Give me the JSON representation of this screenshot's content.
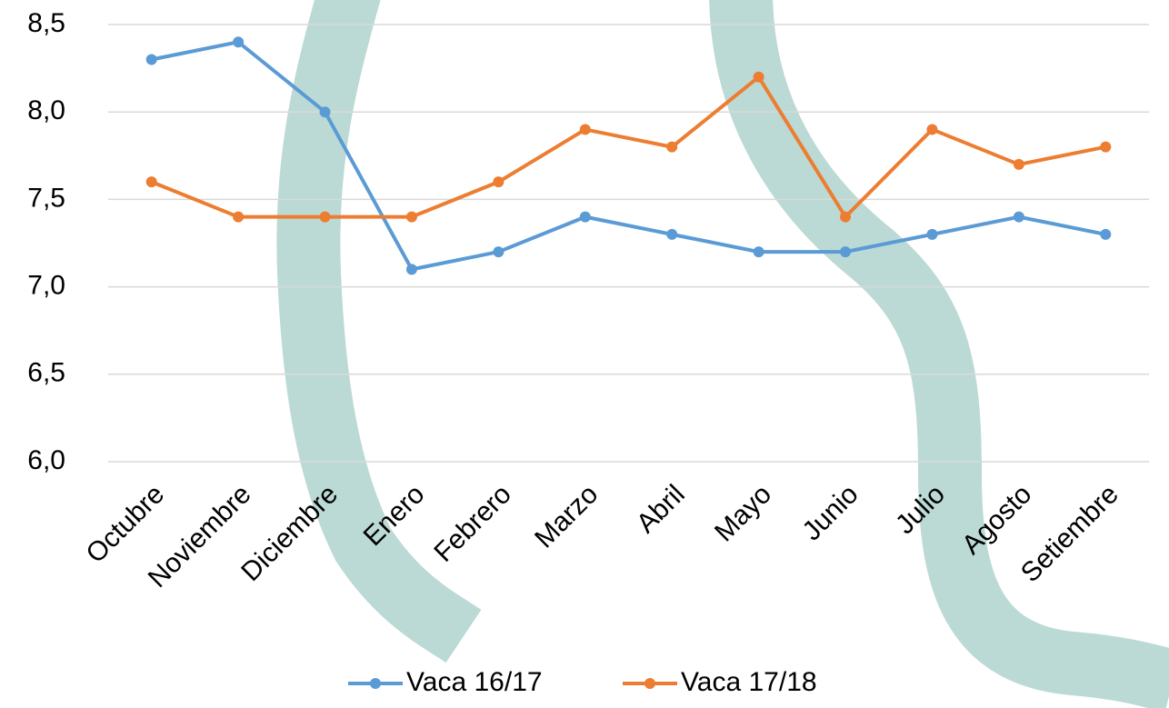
{
  "chart_data": {
    "type": "line",
    "categories": [
      "Octubre",
      "Noviembre",
      "Diciembre",
      "Enero",
      "Febrero",
      "Marzo",
      "Abril",
      "Mayo",
      "Junio",
      "Julio",
      "Agosto",
      "Setiembre"
    ],
    "series": [
      {
        "name": "Vaca 16/17",
        "color": "#5b9bd5",
        "values": [
          8.3,
          8.4,
          8.0,
          7.1,
          7.2,
          7.4,
          7.3,
          7.2,
          7.2,
          7.3,
          7.4,
          7.3
        ]
      },
      {
        "name": "Vaca 17/18",
        "color": "#ed7d31",
        "values": [
          7.6,
          7.4,
          7.4,
          7.4,
          7.6,
          7.9,
          7.8,
          8.2,
          7.4,
          7.9,
          7.7,
          7.8
        ]
      }
    ],
    "ylim": [
      6,
      8.5
    ],
    "yticks": [
      {
        "value": 6,
        "label": "6,0"
      },
      {
        "value": 6.5,
        "label": "6,5"
      },
      {
        "value": 7,
        "label": "7,0"
      },
      {
        "value": 7.5,
        "label": "7,5"
      },
      {
        "value": 8,
        "label": "8,0"
      },
      {
        "value": 8.5,
        "label": "8,5"
      }
    ],
    "grid": true,
    "legend": "bottom"
  }
}
